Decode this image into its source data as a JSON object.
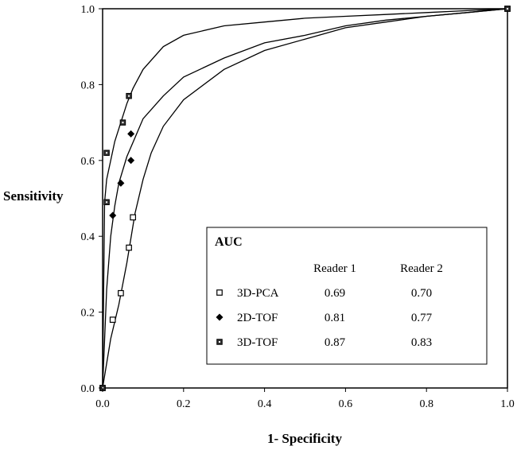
{
  "chart_data": {
    "type": "line",
    "xlabel": "1- Specificity",
    "ylabel": "Sensitivity",
    "xlim": [
      0.0,
      1.0
    ],
    "ylim": [
      0.0,
      1.0
    ],
    "x_ticks": [
      "0.0",
      "0.2",
      "0.4",
      "0.6",
      "0.8",
      "1.0"
    ],
    "y_ticks": [
      "0.0",
      "0.2",
      "0.4",
      "0.6",
      "0.8",
      "1.0"
    ],
    "grid": false,
    "curves": [
      {
        "marker_series": "3D-TOF",
        "points": [
          [
            0,
            0
          ],
          [
            0.005,
            0.49
          ],
          [
            0.01,
            0.55
          ],
          [
            0.02,
            0.6
          ],
          [
            0.03,
            0.65
          ],
          [
            0.045,
            0.7
          ],
          [
            0.06,
            0.75
          ],
          [
            0.075,
            0.79
          ],
          [
            0.1,
            0.84
          ],
          [
            0.15,
            0.9
          ],
          [
            0.2,
            0.93
          ],
          [
            0.3,
            0.955
          ],
          [
            0.4,
            0.965
          ],
          [
            0.5,
            0.975
          ],
          [
            0.6,
            0.98
          ],
          [
            0.7,
            0.985
          ],
          [
            0.8,
            0.99
          ],
          [
            0.9,
            0.995
          ],
          [
            1.0,
            1.0
          ]
        ]
      },
      {
        "marker_series": "2D-TOF",
        "points": [
          [
            0,
            0
          ],
          [
            0.01,
            0.26
          ],
          [
            0.02,
            0.4
          ],
          [
            0.03,
            0.48
          ],
          [
            0.04,
            0.54
          ],
          [
            0.06,
            0.61
          ],
          [
            0.08,
            0.66
          ],
          [
            0.1,
            0.71
          ],
          [
            0.15,
            0.77
          ],
          [
            0.2,
            0.82
          ],
          [
            0.3,
            0.87
          ],
          [
            0.4,
            0.91
          ],
          [
            0.5,
            0.93
          ],
          [
            0.6,
            0.955
          ],
          [
            0.7,
            0.97
          ],
          [
            0.8,
            0.98
          ],
          [
            0.9,
            0.99
          ],
          [
            1.0,
            1.0
          ]
        ]
      },
      {
        "marker_series": "3D-PCA",
        "points": [
          [
            0,
            0
          ],
          [
            0.02,
            0.13
          ],
          [
            0.04,
            0.22
          ],
          [
            0.06,
            0.33
          ],
          [
            0.08,
            0.46
          ],
          [
            0.1,
            0.55
          ],
          [
            0.12,
            0.62
          ],
          [
            0.15,
            0.69
          ],
          [
            0.2,
            0.76
          ],
          [
            0.3,
            0.84
          ],
          [
            0.4,
            0.89
          ],
          [
            0.5,
            0.92
          ],
          [
            0.6,
            0.95
          ],
          [
            0.7,
            0.965
          ],
          [
            0.8,
            0.98
          ],
          [
            0.9,
            0.99
          ],
          [
            1.0,
            1.0
          ]
        ]
      }
    ],
    "series": [
      {
        "name": "3D-PCA",
        "marker": "open-square",
        "points": [
          [
            0,
            0
          ],
          [
            0.025,
            0.18
          ],
          [
            0.045,
            0.25
          ],
          [
            0.065,
            0.37
          ],
          [
            0.075,
            0.45
          ],
          [
            1.0,
            1.0
          ]
        ]
      },
      {
        "name": "2D-TOF",
        "marker": "filled-diamond",
        "points": [
          [
            0.025,
            0.455
          ],
          [
            0.045,
            0.54
          ],
          [
            0.07,
            0.6
          ],
          [
            0.07,
            0.67
          ]
        ]
      },
      {
        "name": "3D-TOF",
        "marker": "dotted-square",
        "points": [
          [
            0,
            0
          ],
          [
            0.01,
            0.49
          ],
          [
            0.01,
            0.62
          ],
          [
            0.05,
            0.7
          ],
          [
            0.065,
            0.77
          ],
          [
            1.0,
            1.0
          ]
        ]
      }
    ],
    "legend": {
      "title": "AUC",
      "col_headers": [
        "Reader 1",
        "Reader 2"
      ],
      "rows": [
        {
          "name": "3D-PCA",
          "marker": "open-square",
          "reader1": "0.69",
          "reader2": "0.70"
        },
        {
          "name": "2D-TOF",
          "marker": "filled-diamond",
          "reader1": "0.81",
          "reader2": "0.77"
        },
        {
          "name": "3D-TOF",
          "marker": "dotted-square",
          "reader1": "0.87",
          "reader2": "0.83"
        }
      ],
      "placement": "bottom-right"
    }
  }
}
